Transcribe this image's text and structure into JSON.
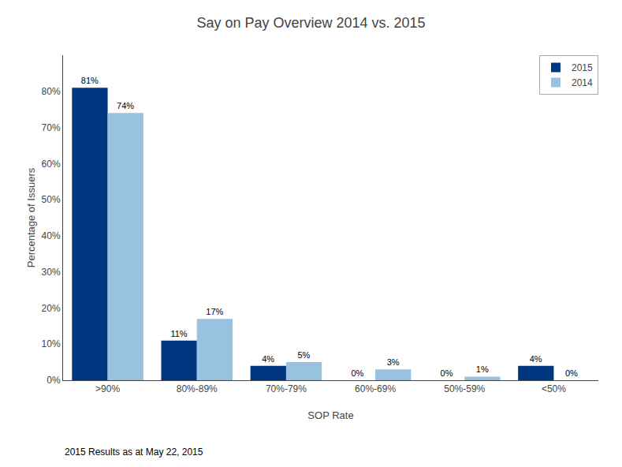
{
  "chart_data": {
    "type": "bar",
    "title": "Say on Pay Overview 2014 vs. 2015",
    "categories": [
      ">90%",
      "80%-89%",
      "70%-79%",
      "60%-69%",
      "50%-59%",
      "<50%"
    ],
    "series": [
      {
        "name": "2015",
        "color": "#003580",
        "values": [
          81,
          11,
          4,
          0,
          0,
          4
        ],
        "value_labels": [
          "81%",
          "11%",
          "4%",
          "0%",
          "0%",
          "4%"
        ]
      },
      {
        "name": "2014",
        "color": "#99c2e0",
        "values": [
          74,
          17,
          5,
          3,
          1,
          0
        ],
        "value_labels": [
          "74%",
          "17%",
          "5%",
          "3%",
          "1%",
          "0%"
        ]
      }
    ],
    "xlabel": "SOP Rate",
    "ylabel": "Percentage of Issuers",
    "ylim": [
      0,
      90
    ],
    "yticks": [
      {
        "value": 0,
        "label": "0%"
      },
      {
        "value": 10,
        "label": "10%"
      },
      {
        "value": 20,
        "label": "20%"
      },
      {
        "value": 30,
        "label": "30%"
      },
      {
        "value": 40,
        "label": "40%"
      },
      {
        "value": 50,
        "label": "50%"
      },
      {
        "value": 60,
        "label": "60%"
      },
      {
        "value": 70,
        "label": "70%"
      },
      {
        "value": 80,
        "label": "80%"
      }
    ],
    "grid": false,
    "legend": "upper right",
    "data_labels": true,
    "annotations": [
      "2015 Results as at May 22, 2015"
    ]
  }
}
